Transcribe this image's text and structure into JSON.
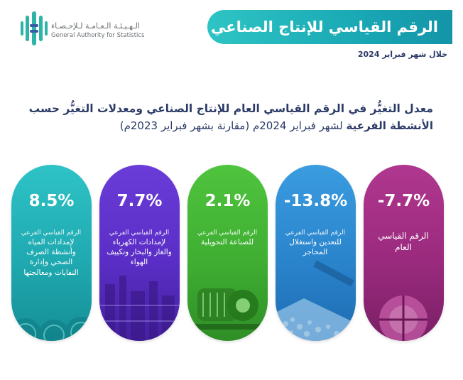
{
  "logo": {
    "arabic": "الـهـيـئـة الـعـامـة لـلإحـصـاء",
    "english": "General Authority for Statistics"
  },
  "banner": {
    "title": "الرقم القياسي للإنتاج الصناعي"
  },
  "period": "خلال شهر فبراير 2024",
  "heading": {
    "line1": "معدل التغيُّر في الرقم القياسي العام للإنتاج الصناعي ومعدلات التغيُّر حسب",
    "line2_bold": "الأنشطة الفرعية",
    "line2_rest": " لشهر فبراير 2024م (مقارنة بشهر فبراير 2023م)"
  },
  "colors": {
    "banner": "#1aa9b5",
    "heading": "#2b3a67",
    "water": "#1fa9b0",
    "electricity": "#5a2ec6",
    "manufacturing": "#3fae32",
    "mining": "#2a84cc",
    "general": "#9a2a7d"
  },
  "indicators": [
    {
      "id": "water",
      "value": "8.5%",
      "prefix": "الرقم القياسي الفرعي",
      "label": "لإمدادات المياه وأنشطة الصرف الصحي وإدارة النفايات ومعالجتها",
      "icon": "water-pipes-icon"
    },
    {
      "id": "elec",
      "value": "7.7%",
      "prefix": "الرقم القياسي الفرعي",
      "label": "لإمدادات الكهرباء والغاز والبخار وتكييف الهواء",
      "icon": "power-plant-icon"
    },
    {
      "id": "manu",
      "value": "2.1%",
      "prefix": "الرقم القياسي الفرعي",
      "label": "للصناعة التحويلية",
      "icon": "motor-icon"
    },
    {
      "id": "mining",
      "value": "-13.8%",
      "prefix": "الرقم القياسي الفرعي",
      "label": "للتعدين واستغلال المحاجر",
      "icon": "mining-conveyor-icon"
    },
    {
      "id": "general",
      "value": "-7.7%",
      "prefix": "",
      "label": "الرقم القياسي العام",
      "icon": "factory-icon"
    }
  ]
}
